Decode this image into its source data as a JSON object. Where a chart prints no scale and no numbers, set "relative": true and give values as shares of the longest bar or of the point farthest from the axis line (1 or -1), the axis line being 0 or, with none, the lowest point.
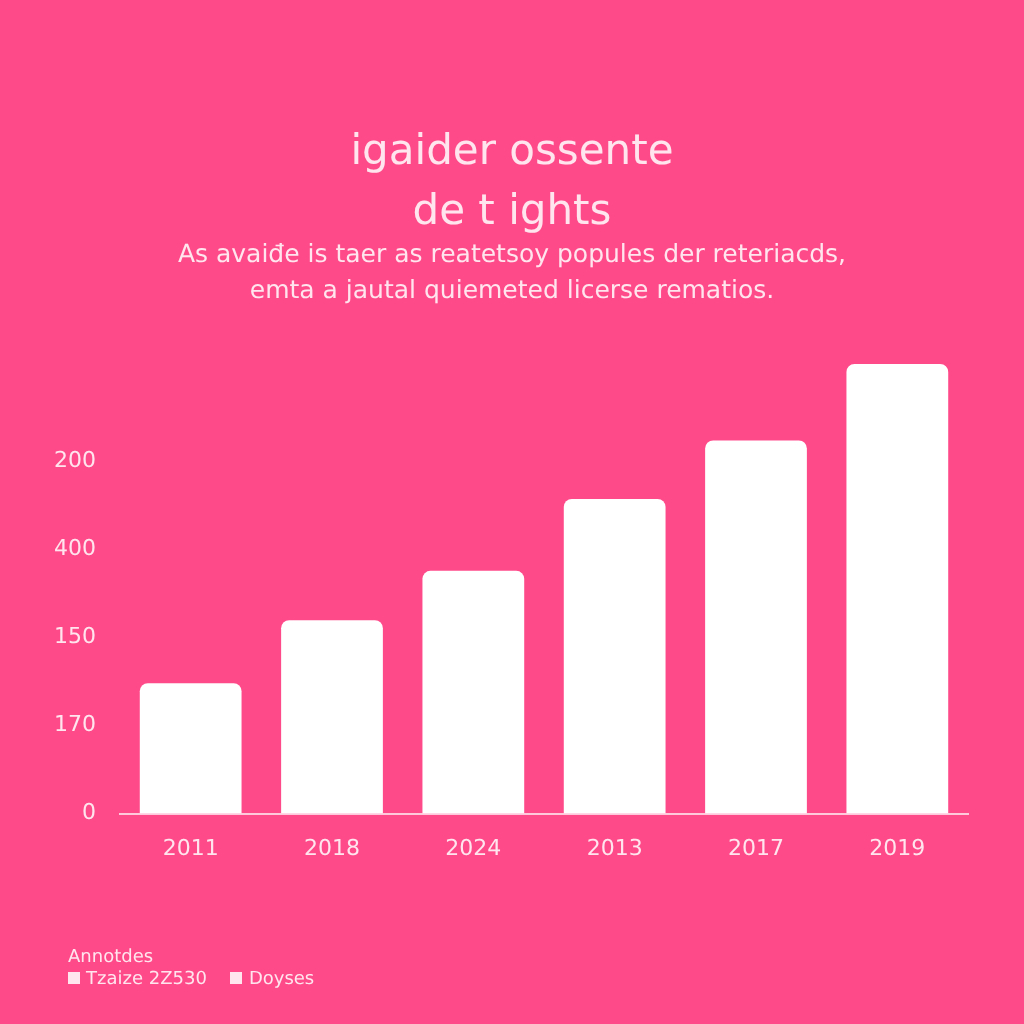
{
  "chart_data": {
    "type": "bar",
    "title": "igaider ossente\nde t ights",
    "subtitle": "As avaiđe is taer as reatetsoy popules der reteriacds,\nemta a jautal quiemeted licerse rematios.",
    "categories": [
      "2011",
      "2018",
      "2024",
      "2013",
      "2017",
      "2019"
    ],
    "values": [
      0.29,
      0.43,
      0.54,
      0.7,
      0.83,
      1
    ],
    "color": "#ffffff",
    "relative": true,
    "legend": false,
    "annotations": [
      "0",
      "170",
      "150",
      "400",
      "200",
      "Annotdes",
      "Tzaize 2Z530",
      "Doyses"
    ]
  }
}
